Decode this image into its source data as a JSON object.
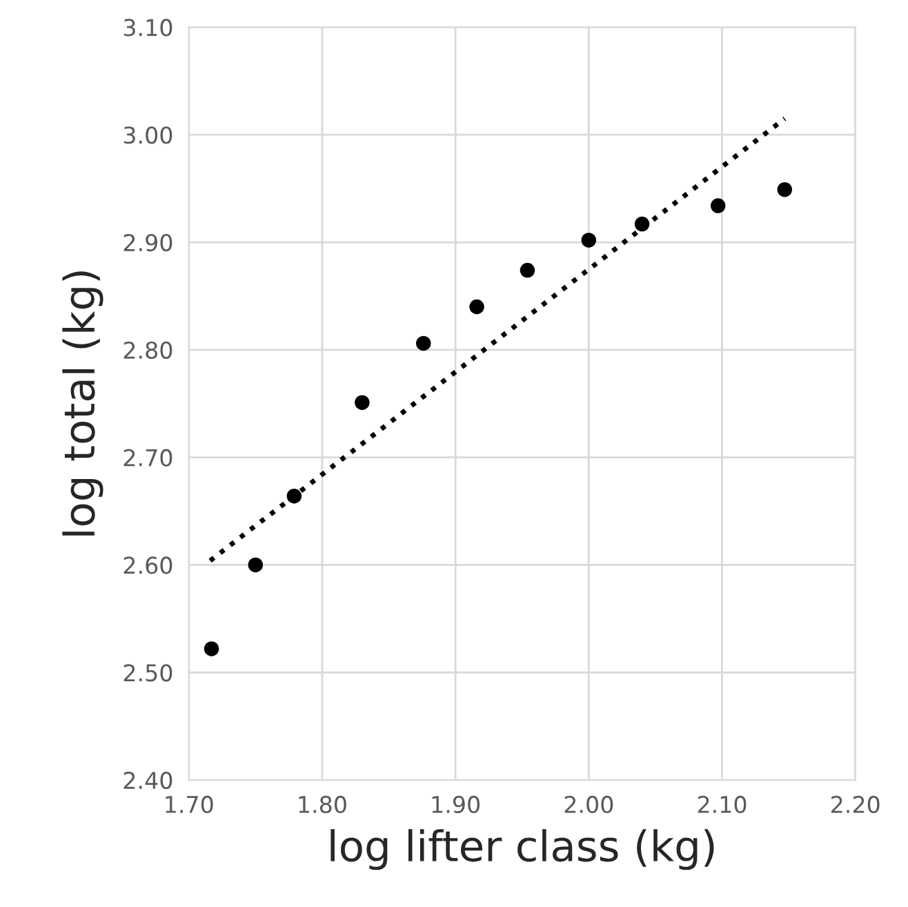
{
  "chart_data": {
    "type": "scatter",
    "xlabel": "log lifter class (kg)",
    "ylabel": "log total (kg)",
    "xlim": [
      1.7,
      2.2
    ],
    "xticks": [
      {
        "value": 1.7,
        "label": "1.70"
      },
      {
        "value": 1.8,
        "label": "1.80"
      },
      {
        "value": 1.9,
        "label": "1.90"
      },
      {
        "value": 2.0,
        "label": "2.00"
      },
      {
        "value": 2.1,
        "label": "2.10"
      },
      {
        "value": 2.2,
        "label": "2.20"
      }
    ],
    "ylim": [
      2.4,
      3.1
    ],
    "yticks": [
      {
        "value": 2.4,
        "label": "2.40"
      },
      {
        "value": 2.5,
        "label": "2.50"
      },
      {
        "value": 2.6,
        "label": "2.60"
      },
      {
        "value": 2.7,
        "label": "2.70"
      },
      {
        "value": 2.8,
        "label": "2.80"
      },
      {
        "value": 2.9,
        "label": "2.90"
      },
      {
        "value": 3.0,
        "label": "3.00"
      },
      {
        "value": 3.1,
        "label": "3.10"
      }
    ],
    "grid": true,
    "marker": "circle",
    "series": [
      {
        "color": "#000000",
        "x": [
          1.717,
          1.75,
          1.779,
          1.83,
          1.876,
          1.916,
          1.954,
          2.0,
          2.04,
          2.097,
          2.147
        ],
        "values": [
          2.522,
          2.6,
          2.664,
          2.751,
          2.806,
          2.84,
          2.874,
          2.902,
          2.917,
          2.934,
          2.949
        ]
      },
      {
        "type": "line",
        "color": "#000000",
        "line_style": "dotted",
        "marker": "none",
        "x": [
          1.716,
          2.147
        ],
        "values": [
          2.604,
          3.015
        ]
      }
    ]
  }
}
